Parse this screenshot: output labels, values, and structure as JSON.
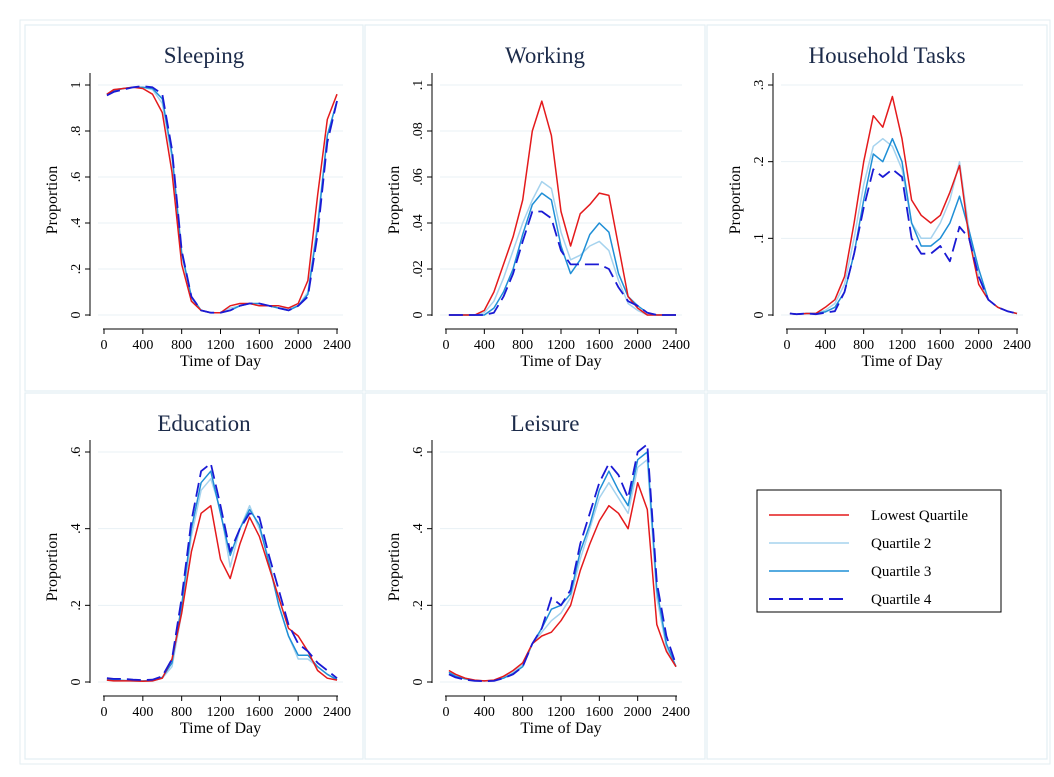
{
  "figure": {
    "colors": {
      "background": "#ffffff",
      "panel_border": "#e3eef2",
      "grid": "#e8f1f4",
      "axis": "#000000",
      "title": "#1c2b4a"
    }
  },
  "legend": {
    "placement": "right-middle (empty sixth cell)",
    "entries": [
      {
        "label": "Lowest Quartile",
        "color": "#e41a1c",
        "dash": "solid"
      },
      {
        "label": "Quartile 2",
        "color": "#a6d3ee",
        "dash": "solid"
      },
      {
        "label": "Quartile 3",
        "color": "#1f8fd6",
        "dash": "solid"
      },
      {
        "label": "Quartile 4",
        "color": "#1a1ad4",
        "dash": "long-dash"
      }
    ]
  },
  "chart_data": [
    {
      "type": "line",
      "title": "Sleeping",
      "xlabel": "Time of Day",
      "ylabel": "Proportion",
      "xlim": [
        0,
        2400
      ],
      "ylim": [
        0,
        1
      ],
      "xticks": [
        0,
        400,
        800,
        1200,
        1600,
        2000,
        2400
      ],
      "xtick_labels": [
        "0",
        "400",
        "800",
        "1200",
        "1600",
        "2000",
        "2400"
      ],
      "yticks": [
        0,
        0.2,
        0.4,
        0.6,
        0.8,
        1
      ],
      "ytick_labels": [
        "0",
        ".2",
        ".4",
        ".6",
        ".8",
        "1"
      ],
      "grid": true,
      "x": [
        30,
        100,
        200,
        300,
        400,
        500,
        600,
        700,
        800,
        900,
        1000,
        1100,
        1200,
        1300,
        1400,
        1500,
        1600,
        1700,
        1800,
        1900,
        2000,
        2100,
        2200,
        2300,
        2400
      ],
      "series": [
        {
          "name": "Lowest Quartile",
          "values": [
            0.96,
            0.98,
            0.985,
            0.99,
            0.985,
            0.96,
            0.88,
            0.62,
            0.22,
            0.06,
            0.02,
            0.01,
            0.01,
            0.04,
            0.05,
            0.05,
            0.04,
            0.04,
            0.04,
            0.03,
            0.05,
            0.15,
            0.52,
            0.85,
            0.96
          ]
        },
        {
          "name": "Quartile 2",
          "values": [
            0.96,
            0.98,
            0.985,
            0.99,
            0.99,
            0.98,
            0.92,
            0.68,
            0.26,
            0.07,
            0.02,
            0.01,
            0.01,
            0.03,
            0.04,
            0.05,
            0.04,
            0.04,
            0.03,
            0.03,
            0.04,
            0.1,
            0.4,
            0.78,
            0.93
          ]
        },
        {
          "name": "Quartile 3",
          "values": [
            0.96,
            0.975,
            0.985,
            0.99,
            0.99,
            0.985,
            0.94,
            0.7,
            0.27,
            0.08,
            0.02,
            0.01,
            0.01,
            0.02,
            0.04,
            0.05,
            0.05,
            0.04,
            0.03,
            0.02,
            0.04,
            0.09,
            0.38,
            0.78,
            0.93
          ]
        },
        {
          "name": "Quartile 4",
          "values": [
            0.955,
            0.97,
            0.98,
            0.99,
            0.995,
            0.99,
            0.96,
            0.72,
            0.28,
            0.08,
            0.02,
            0.01,
            0.01,
            0.02,
            0.04,
            0.05,
            0.05,
            0.04,
            0.03,
            0.02,
            0.04,
            0.08,
            0.35,
            0.75,
            0.93
          ]
        }
      ]
    },
    {
      "type": "line",
      "title": "Working",
      "xlabel": "Time of Day",
      "ylabel": "Proportion",
      "xlim": [
        0,
        2400
      ],
      "ylim": [
        0,
        0.1
      ],
      "xticks": [
        0,
        400,
        800,
        1200,
        1600,
        2000,
        2400
      ],
      "xtick_labels": [
        "0",
        "400",
        "800",
        "1200",
        "1600",
        "2000",
        "2400"
      ],
      "yticks": [
        0,
        0.02,
        0.04,
        0.06,
        0.08,
        0.1
      ],
      "ytick_labels": [
        "0",
        ".02",
        ".04",
        ".06",
        ".08",
        ".1"
      ],
      "grid": true,
      "x": [
        30,
        100,
        200,
        300,
        400,
        500,
        600,
        700,
        800,
        900,
        1000,
        1100,
        1200,
        1300,
        1400,
        1500,
        1600,
        1700,
        1800,
        1900,
        2000,
        2100,
        2200,
        2300,
        2400
      ],
      "series": [
        {
          "name": "Lowest Quartile",
          "values": [
            0,
            0,
            0,
            0,
            0.002,
            0.01,
            0.022,
            0.034,
            0.05,
            0.08,
            0.093,
            0.078,
            0.045,
            0.03,
            0.044,
            0.048,
            0.053,
            0.052,
            0.03,
            0.008,
            0.003,
            0,
            0,
            0,
            0
          ]
        },
        {
          "name": "Quartile 2",
          "values": [
            0,
            0,
            0,
            0,
            0.001,
            0.006,
            0.016,
            0.028,
            0.04,
            0.05,
            0.058,
            0.055,
            0.036,
            0.024,
            0.026,
            0.03,
            0.032,
            0.028,
            0.015,
            0.005,
            0.002,
            0,
            0,
            0,
            0
          ]
        },
        {
          "name": "Quartile 3",
          "values": [
            0,
            0,
            0,
            0,
            0,
            0.003,
            0.01,
            0.02,
            0.035,
            0.048,
            0.053,
            0.05,
            0.03,
            0.018,
            0.024,
            0.035,
            0.04,
            0.036,
            0.018,
            0.008,
            0.004,
            0.001,
            0,
            0,
            0
          ]
        },
        {
          "name": "Quartile 4",
          "values": [
            0,
            0,
            0,
            0,
            0,
            0.001,
            0.008,
            0.018,
            0.032,
            0.045,
            0.045,
            0.042,
            0.028,
            0.022,
            0.022,
            0.022,
            0.022,
            0.02,
            0.012,
            0.006,
            0.004,
            0.001,
            0,
            0,
            0
          ]
        }
      ]
    },
    {
      "type": "line",
      "title": "Household Tasks",
      "xlabel": "Time of Day",
      "ylabel": "Proportion",
      "xlim": [
        0,
        2400
      ],
      "ylim": [
        0,
        0.3
      ],
      "xticks": [
        0,
        400,
        800,
        1200,
        1600,
        2000,
        2400
      ],
      "xtick_labels": [
        "0",
        "400",
        "800",
        "1200",
        "1600",
        "2000",
        "2400"
      ],
      "yticks": [
        0,
        0.1,
        0.2,
        0.3
      ],
      "ytick_labels": [
        "0",
        ".1",
        ".2",
        ".3"
      ],
      "grid": true,
      "x": [
        30,
        100,
        200,
        300,
        400,
        500,
        600,
        700,
        800,
        900,
        1000,
        1100,
        1200,
        1300,
        1400,
        1500,
        1600,
        1700,
        1800,
        1900,
        2000,
        2100,
        2200,
        2300,
        2400
      ],
      "series": [
        {
          "name": "Lowest Quartile",
          "values": [
            0.002,
            0.001,
            0.002,
            0.002,
            0.01,
            0.02,
            0.05,
            0.12,
            0.2,
            0.26,
            0.245,
            0.285,
            0.23,
            0.15,
            0.13,
            0.12,
            0.13,
            0.16,
            0.195,
            0.1,
            0.04,
            0.02,
            0.01,
            0.005,
            0.002
          ]
        },
        {
          "name": "Quartile 2",
          "values": [
            0.002,
            0.001,
            0.002,
            0.002,
            0.006,
            0.015,
            0.04,
            0.1,
            0.17,
            0.22,
            0.23,
            0.22,
            0.19,
            0.12,
            0.1,
            0.1,
            0.12,
            0.15,
            0.2,
            0.11,
            0.05,
            0.02,
            0.01,
            0.005,
            0.002
          ]
        },
        {
          "name": "Quartile 3",
          "values": [
            0.002,
            0.001,
            0.002,
            0.002,
            0.004,
            0.01,
            0.03,
            0.08,
            0.15,
            0.21,
            0.2,
            0.23,
            0.2,
            0.12,
            0.09,
            0.09,
            0.1,
            0.12,
            0.155,
            0.11,
            0.06,
            0.02,
            0.01,
            0.005,
            0.002
          ]
        },
        {
          "name": "Quartile 4",
          "values": [
            0.002,
            0.001,
            0.002,
            0.001,
            0.003,
            0.005,
            0.03,
            0.08,
            0.14,
            0.19,
            0.18,
            0.19,
            0.18,
            0.1,
            0.08,
            0.08,
            0.09,
            0.07,
            0.115,
            0.1,
            0.05,
            0.02,
            0.01,
            0.005,
            0.002
          ]
        }
      ]
    },
    {
      "type": "line",
      "title": "Education",
      "xlabel": "Time of Day",
      "ylabel": "Proportion",
      "xlim": [
        0,
        2400
      ],
      "ylim": [
        0,
        0.6
      ],
      "xticks": [
        0,
        400,
        800,
        1200,
        1600,
        2000,
        2400
      ],
      "xtick_labels": [
        "0",
        "400",
        "800",
        "1200",
        "1600",
        "2000",
        "2400"
      ],
      "yticks": [
        0,
        0.2,
        0.4,
        0.6
      ],
      "ytick_labels": [
        "0",
        ".2",
        ".4",
        ".6"
      ],
      "grid": true,
      "x": [
        30,
        100,
        200,
        300,
        400,
        500,
        600,
        700,
        800,
        900,
        1000,
        1100,
        1200,
        1300,
        1400,
        1500,
        1600,
        1700,
        1800,
        1900,
        2000,
        2100,
        2200,
        2300,
        2400
      ],
      "series": [
        {
          "name": "Lowest Quartile",
          "values": [
            0.005,
            0.003,
            0.003,
            0.003,
            0.002,
            0.003,
            0.01,
            0.06,
            0.18,
            0.34,
            0.44,
            0.46,
            0.32,
            0.27,
            0.36,
            0.43,
            0.38,
            0.3,
            0.22,
            0.14,
            0.12,
            0.08,
            0.03,
            0.01,
            0.005
          ]
        },
        {
          "name": "Quartile 2",
          "values": [
            0.005,
            0.005,
            0.004,
            0.003,
            0.002,
            0.003,
            0.01,
            0.04,
            0.18,
            0.38,
            0.5,
            0.53,
            0.45,
            0.3,
            0.4,
            0.46,
            0.4,
            0.32,
            0.2,
            0.12,
            0.06,
            0.06,
            0.04,
            0.02,
            0.005
          ]
        },
        {
          "name": "Quartile 3",
          "values": [
            0.006,
            0.005,
            0.004,
            0.003,
            0.003,
            0.004,
            0.012,
            0.05,
            0.2,
            0.4,
            0.52,
            0.55,
            0.44,
            0.33,
            0.4,
            0.45,
            0.41,
            0.31,
            0.2,
            0.12,
            0.07,
            0.07,
            0.04,
            0.02,
            0.006
          ]
        },
        {
          "name": "Quartile 4",
          "values": [
            0.01,
            0.008,
            0.008,
            0.006,
            0.005,
            0.006,
            0.015,
            0.06,
            0.22,
            0.42,
            0.55,
            0.57,
            0.46,
            0.34,
            0.4,
            0.44,
            0.43,
            0.33,
            0.24,
            0.15,
            0.1,
            0.08,
            0.05,
            0.03,
            0.01
          ]
        }
      ]
    },
    {
      "type": "line",
      "title": "Leisure",
      "xlabel": "Time of Day",
      "ylabel": "Proportion",
      "xlim": [
        0,
        2400
      ],
      "ylim": [
        0,
        0.6
      ],
      "xticks": [
        0,
        400,
        800,
        1200,
        1600,
        2000,
        2400
      ],
      "xtick_labels": [
        "0",
        "400",
        "800",
        "1200",
        "1600",
        "2000",
        "2400"
      ],
      "yticks": [
        0,
        0.2,
        0.4,
        0.6
      ],
      "ytick_labels": [
        "0",
        ".2",
        ".4",
        ".6"
      ],
      "grid": true,
      "x": [
        30,
        100,
        200,
        300,
        400,
        500,
        600,
        700,
        800,
        900,
        1000,
        1100,
        1200,
        1300,
        1400,
        1500,
        1600,
        1700,
        1800,
        1900,
        2000,
        2100,
        2200,
        2300,
        2400
      ],
      "series": [
        {
          "name": "Lowest Quartile",
          "values": [
            0.03,
            0.02,
            0.01,
            0.005,
            0.003,
            0.005,
            0.015,
            0.03,
            0.05,
            0.1,
            0.12,
            0.13,
            0.16,
            0.2,
            0.29,
            0.36,
            0.42,
            0.46,
            0.44,
            0.4,
            0.52,
            0.45,
            0.15,
            0.08,
            0.04
          ]
        },
        {
          "name": "Quartile 2",
          "values": [
            0.025,
            0.018,
            0.01,
            0.004,
            0.003,
            0.004,
            0.012,
            0.025,
            0.045,
            0.1,
            0.13,
            0.16,
            0.18,
            0.22,
            0.32,
            0.4,
            0.48,
            0.52,
            0.48,
            0.44,
            0.56,
            0.58,
            0.22,
            0.09,
            0.04
          ]
        },
        {
          "name": "Quartile 3",
          "values": [
            0.025,
            0.015,
            0.008,
            0.004,
            0.003,
            0.004,
            0.01,
            0.022,
            0.04,
            0.1,
            0.14,
            0.19,
            0.2,
            0.23,
            0.34,
            0.41,
            0.5,
            0.55,
            0.5,
            0.46,
            0.58,
            0.6,
            0.24,
            0.1,
            0.04
          ]
        },
        {
          "name": "Quartile 4",
          "values": [
            0.02,
            0.012,
            0.006,
            0.003,
            0.002,
            0.003,
            0.01,
            0.02,
            0.04,
            0.1,
            0.14,
            0.22,
            0.2,
            0.24,
            0.36,
            0.44,
            0.52,
            0.57,
            0.54,
            0.48,
            0.6,
            0.62,
            0.26,
            0.12,
            0.045
          ]
        }
      ]
    }
  ]
}
